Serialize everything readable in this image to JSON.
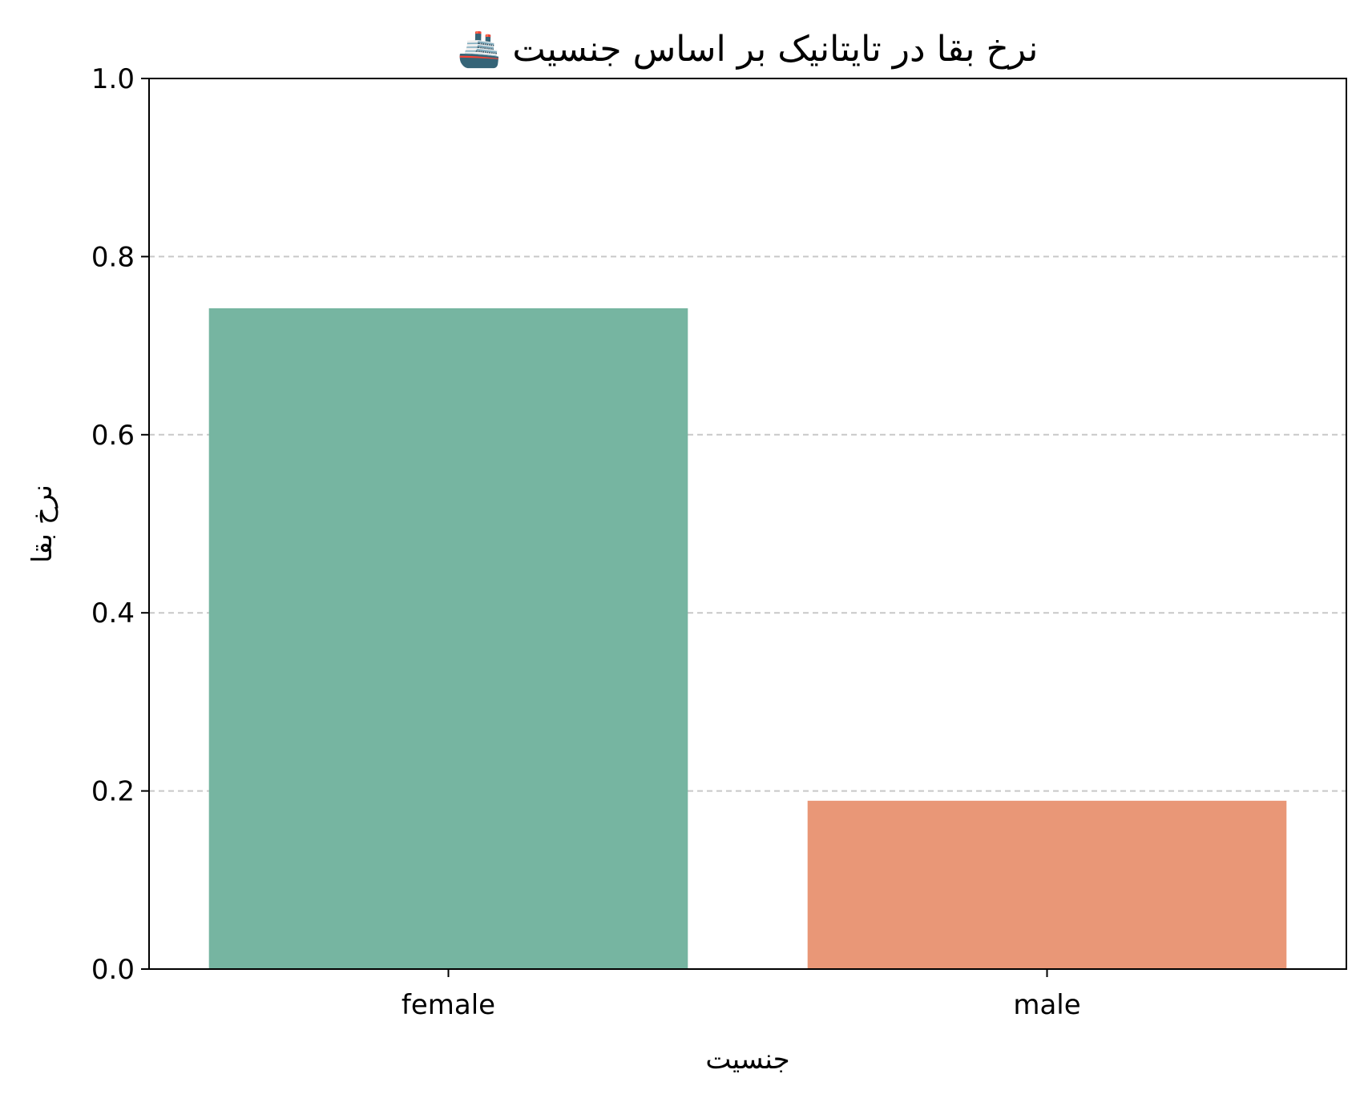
{
  "chart_data": {
    "type": "bar",
    "title": "نرخ بقا در تایتانیک بر اساس جنسیت 🚢",
    "xlabel": "جنسیت",
    "ylabel": "نرخ بقا",
    "categories": [
      "female",
      "male"
    ],
    "values": [
      0.742,
      0.189
    ],
    "colors": [
      "#76b5a1",
      "#e99777"
    ],
    "ylim": [
      0,
      1.0
    ],
    "yticks": [
      "0.0",
      "0.2",
      "0.4",
      "0.6",
      "0.8",
      "1.0"
    ],
    "grid": "horizontal-dashed",
    "legend": "none"
  }
}
